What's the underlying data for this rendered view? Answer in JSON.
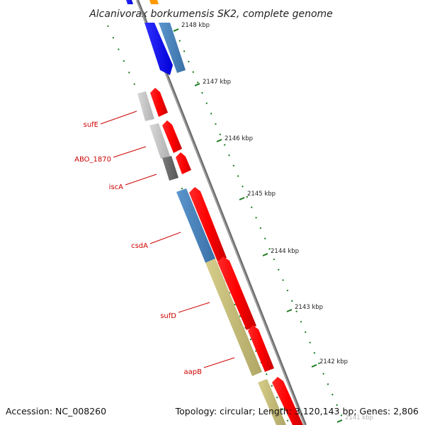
{
  "map": {
    "title": "Alcanivorax borkumensis SK2, complete genome",
    "accession_label": "Accession: NC_008260",
    "topology_label": "Topology: circular; Length: 3,120,143 bp; Genes: 2,806"
  },
  "scale": {
    "ticks": [
      {
        "label": "2148 kbp"
      },
      {
        "label": "2147 kbp"
      },
      {
        "label": "2146 kbp"
      },
      {
        "label": "2145 kbp"
      },
      {
        "label": "2144 kbp"
      },
      {
        "label": "2143 kbp"
      },
      {
        "label": "2142 kbp"
      },
      {
        "label": "2141 kbp"
      }
    ]
  },
  "genes": [
    {
      "name": "sufE"
    },
    {
      "name": "ABO_1870"
    },
    {
      "name": "iscA"
    },
    {
      "name": "csdA"
    },
    {
      "name": "sufD"
    },
    {
      "name": "aapB"
    }
  ],
  "colors": {
    "backbone": "#808080",
    "forward_cds": "#ff0000",
    "tick": "#1a7a1a",
    "label": "#cc0000",
    "blue": "#1010ff",
    "steel": "#4a86c0",
    "khaki": "#c8bf7a",
    "grey_light": "#c8c8c8",
    "grey_dark": "#6a6a6a",
    "orange": "#ff9900"
  }
}
